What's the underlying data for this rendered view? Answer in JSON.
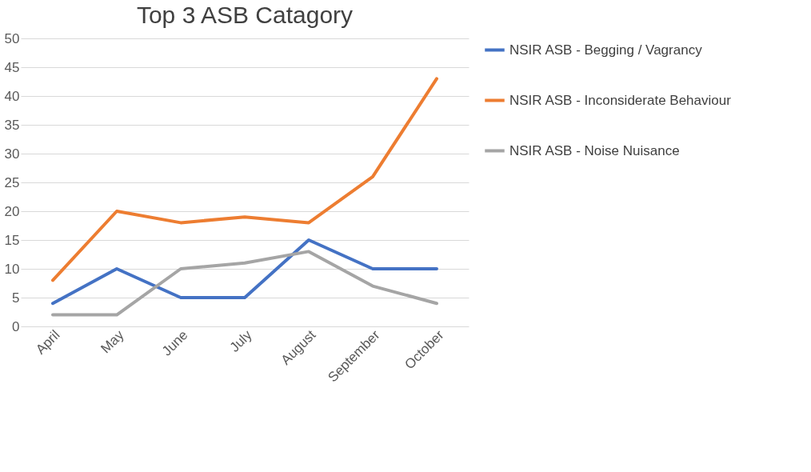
{
  "chart_data": {
    "type": "line",
    "title": "Top 3 ASB Catagory",
    "categories": [
      "April",
      "May",
      "June",
      "July",
      "August",
      "September",
      "October"
    ],
    "series": [
      {
        "name": "NSIR ASB - Begging / Vagrancy",
        "color": "#4472c4",
        "values": [
          4,
          10,
          5,
          5,
          15,
          10,
          10
        ]
      },
      {
        "name": "NSIR ASB - Inconsiderate Behaviour",
        "color": "#ed7d31",
        "values": [
          8,
          20,
          18,
          19,
          18,
          26,
          43
        ]
      },
      {
        "name": "NSIR ASB - Noise Nuisance",
        "color": "#a5a5a5",
        "values": [
          2,
          2,
          10,
          11,
          13,
          7,
          4
        ]
      }
    ],
    "ylim": [
      0,
      50
    ],
    "yticks": [
      0,
      5,
      10,
      15,
      20,
      25,
      30,
      35,
      40,
      45,
      50
    ],
    "grid": "y",
    "legend": "right",
    "marker": "none",
    "line_style": "solid"
  }
}
